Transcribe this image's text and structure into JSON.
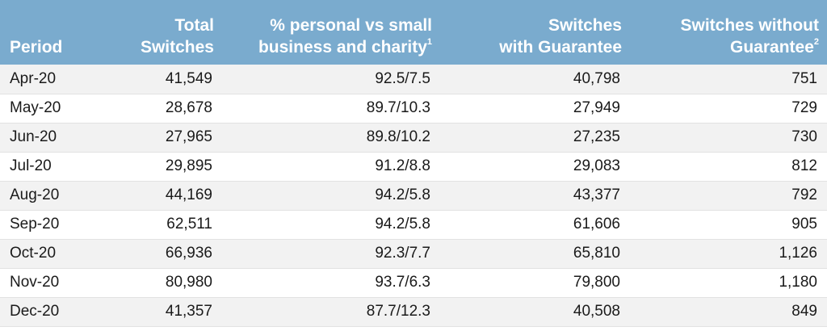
{
  "table": {
    "headers": {
      "period": "Period",
      "total_line1": "Total",
      "total_line2": "Switches",
      "personal_line1": "% personal vs small",
      "personal_line2": "business and charity",
      "personal_footnote": "1",
      "with_line1": "Switches",
      "with_line2": "with Guarantee",
      "without_line1": "Switches without",
      "without_line2": "Guarantee",
      "without_footnote": "2"
    },
    "rows": [
      {
        "period": "Apr-20",
        "total": "41,549",
        "personal": "92.5/7.5",
        "with": "40,798",
        "without": "751"
      },
      {
        "period": "May-20",
        "total": "28,678",
        "personal": "89.7/10.3",
        "with": "27,949",
        "without": "729"
      },
      {
        "period": "Jun-20",
        "total": "27,965",
        "personal": "89.8/10.2",
        "with": "27,235",
        "without": "730"
      },
      {
        "period": "Jul-20",
        "total": "29,895",
        "personal": "91.2/8.8",
        "with": "29,083",
        "without": "812"
      },
      {
        "period": "Aug-20",
        "total": "44,169",
        "personal": "94.2/5.8",
        "with": "43,377",
        "without": "792"
      },
      {
        "period": "Sep-20",
        "total": "62,511",
        "personal": "94.2/5.8",
        "with": "61,606",
        "without": "905"
      },
      {
        "period": "Oct-20",
        "total": "66,936",
        "personal": "92.3/7.7",
        "with": "65,810",
        "without": "1,126"
      },
      {
        "period": "Nov-20",
        "total": "80,980",
        "personal": "93.7/6.3",
        "with": "79,800",
        "without": "1,180"
      },
      {
        "period": "Dec-20",
        "total": "41,357",
        "personal": "87.7/12.3",
        "with": "40,508",
        "without": "849"
      }
    ],
    "colors": {
      "header_background": "#7aabce",
      "header_text": "#ffffff",
      "row_stripe": "#f2f2f2"
    }
  }
}
